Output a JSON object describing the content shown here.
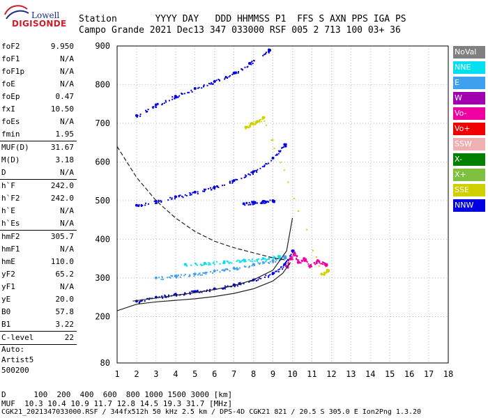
{
  "logo": {
    "line1": "Lowell",
    "line2": "DIGISONDE"
  },
  "header": {
    "row1": "Station       YYYY DAY   DDD HHMMSS P1  FFS S AXN PPS IGA PS",
    "row2": "Campo Grande 2021 Dec13 347 033000 RSF 005 2 713 100 03+ 36"
  },
  "params": [
    {
      "label": "foF2",
      "value": "9.950"
    },
    {
      "label": "foF1",
      "value": "N/A"
    },
    {
      "label": "foF1p",
      "value": "N/A"
    },
    {
      "label": "foE",
      "value": "N/A"
    },
    {
      "label": "foEp",
      "value": "0.47"
    },
    {
      "label": "fxI",
      "value": "10.50"
    },
    {
      "label": "foEs",
      "value": "N/A"
    },
    {
      "label": "fmin",
      "value": "1.95"
    },
    {
      "sep": true
    },
    {
      "label": "MUF(D)",
      "value": "31.67"
    },
    {
      "label": "M(D)",
      "value": "3.18"
    },
    {
      "label": "D",
      "value": "N/A"
    },
    {
      "sep": true
    },
    {
      "label": "h`F",
      "value": "242.0"
    },
    {
      "label": "h`F2",
      "value": "242.0"
    },
    {
      "label": "h`E",
      "value": "N/A"
    },
    {
      "label": "h`Es",
      "value": "N/A"
    },
    {
      "sep": true
    },
    {
      "label": "hmF2",
      "value": "305.7"
    },
    {
      "label": "hmF1",
      "value": "N/A"
    },
    {
      "label": "hmE",
      "value": "110.0"
    },
    {
      "label": "yF2",
      "value": "65.2"
    },
    {
      "label": "yF1",
      "value": "N/A"
    },
    {
      "label": "yE",
      "value": "20.0"
    },
    {
      "label": "B0",
      "value": "57.8"
    },
    {
      "label": "B1",
      "value": "3.22"
    },
    {
      "sep": true
    },
    {
      "label": "C-level",
      "value": "22"
    },
    {
      "sep": true
    }
  ],
  "auto": [
    "Auto:",
    "Artist5",
    "500200"
  ],
  "legend": [
    {
      "label": "NoVal",
      "color": "#808080"
    },
    {
      "label": "NNE",
      "color": "#00e0f0"
    },
    {
      "label": "E",
      "color": "#40a0f0"
    },
    {
      "label": "W",
      "color": "#a000b0"
    },
    {
      "label": "Vo-",
      "color": "#f000a0"
    },
    {
      "label": "Vo+",
      "color": "#f00000"
    },
    {
      "label": "SSW",
      "color": "#f0b0b0"
    },
    {
      "label": "X-",
      "color": "#008000"
    },
    {
      "label": "X+",
      "color": "#80c040"
    },
    {
      "label": "SSE",
      "color": "#d0d000"
    },
    {
      "label": "NNW",
      "color": "#0000e0"
    }
  ],
  "footer": {
    "row1": "D      100  200  400  600  800 1000 1500 3000 [km]",
    "row2": "MUF  10.3 10.4 10.9 11.7 12.8 14.5 19.3 31.7 [MHz]",
    "row3": "CGK21_2021347033000.RSF / 344fx512h 50 kHz 2.5 km / DPS-4D CGK21 821 / 20.5 S 305.0 E Ion2Png 1.3.20"
  },
  "chart_data": {
    "type": "scatter",
    "xlim": [
      1,
      18
    ],
    "ylim": [
      80,
      900
    ],
    "xticks": [
      1,
      2,
      3,
      4,
      5,
      6,
      7,
      8,
      9,
      10,
      11,
      12,
      13,
      14,
      15,
      16,
      17,
      18
    ],
    "yticks": [
      80,
      200,
      300,
      400,
      500,
      600,
      700,
      800,
      900
    ],
    "grid": "dotted",
    "traces": [
      {
        "name": "F2 trace",
        "color": "#0000e0",
        "x": [
          2.0,
          3.0,
          4.0,
          5.0,
          6.0,
          7.0,
          8.0,
          9.0,
          9.6,
          10.0
        ],
        "y": [
          240,
          250,
          258,
          265,
          272,
          282,
          295,
          312,
          335,
          370
        ]
      },
      {
        "name": "2nd hop",
        "color": "#0000e0",
        "x": [
          2.0,
          3.0,
          4.0,
          5.0,
          6.0,
          7.0,
          8.0,
          9.0,
          9.6
        ],
        "y": [
          488,
          498,
          510,
          522,
          535,
          552,
          575,
          610,
          645
        ]
      },
      {
        "name": "3rd hop",
        "color": "#0000e0",
        "x": [
          2.0,
          3.0,
          4.0,
          5.0,
          6.0,
          7.0,
          7.8,
          8.8
        ],
        "y": [
          720,
          748,
          770,
          790,
          808,
          830,
          855,
          890
        ]
      },
      {
        "name": "echo band",
        "color": "#40a0f0",
        "x": [
          3.0,
          4.0,
          5.0,
          6.0,
          7.0,
          8.0,
          9.0,
          9.6
        ],
        "y": [
          300,
          305,
          310,
          318,
          325,
          335,
          345,
          355
        ]
      },
      {
        "name": "echo band 2",
        "color": "#00e0f0",
        "x": [
          4.5,
          5.5,
          6.5,
          7.5,
          8.5,
          9.3
        ],
        "y": [
          335,
          338,
          342,
          346,
          350,
          356
        ]
      },
      {
        "name": "spread near foF2",
        "color": "#f000a0",
        "x": [
          9.7,
          9.9,
          10.1,
          10.3,
          10.6,
          10.9,
          11.3,
          11.7
        ],
        "y": [
          330,
          350,
          365,
          340,
          350,
          330,
          345,
          335
        ]
      },
      {
        "name": "NoVal cluster",
        "color": "#d0d000",
        "x": [
          7.6,
          7.9,
          8.2,
          8.5,
          11.5,
          11.8
        ],
        "y": [
          690,
          700,
          705,
          715,
          310,
          320
        ]
      },
      {
        "name": "mid echoes",
        "color": "#0000e0",
        "x": [
          7.5,
          8.0,
          8.5,
          9.0
        ],
        "y": [
          492,
          496,
          498,
          500
        ]
      }
    ],
    "curves": [
      {
        "name": "true height",
        "style": "solid",
        "x": [
          1.0,
          2.0,
          3.0,
          4.0,
          5.0,
          6.0,
          7.0,
          8.0,
          9.0,
          9.5,
          9.9
        ],
        "y": [
          215,
          232,
          238,
          242,
          246,
          252,
          260,
          272,
          292,
          312,
          340
        ]
      },
      {
        "name": "model virtual height",
        "style": "solid",
        "x": [
          1.8,
          3.0,
          4.0,
          5.0,
          6.0,
          7.0,
          8.0,
          9.0,
          9.7,
          10.0
        ],
        "y": [
          240,
          248,
          255,
          262,
          270,
          280,
          295,
          320,
          370,
          455
        ]
      },
      {
        "name": "MUF",
        "style": "dashed",
        "x": [
          1.0,
          2.0,
          3.0,
          4.0,
          5.0,
          6.0,
          7.0,
          8.0,
          9.0,
          9.8
        ],
        "y": [
          640,
          560,
          500,
          455,
          420,
          395,
          378,
          365,
          352,
          345
        ]
      }
    ]
  }
}
